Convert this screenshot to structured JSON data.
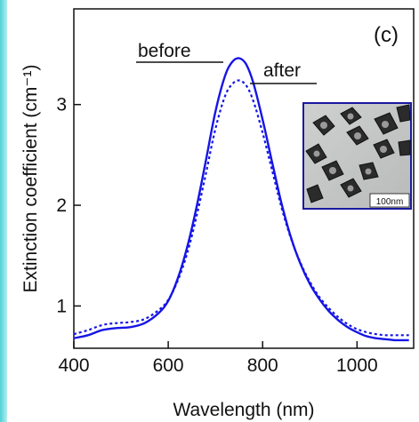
{
  "chart_data": {
    "type": "line",
    "panel_label": "(c)",
    "xlabel": "Wavelength (nm)",
    "ylabel": "Extinction coefficient (cm⁻¹)",
    "xlim": [
      400,
      1120
    ],
    "ylim": [
      0.58,
      3.95
    ],
    "x_ticks": [
      400,
      600,
      800,
      1000
    ],
    "y_ticks": [
      1,
      2,
      3
    ],
    "grid": false,
    "legend": "curve annotations top-center",
    "colors": {
      "line": "#1515e6",
      "axis": "#111111"
    },
    "series": [
      {
        "name": "before",
        "style": "solid",
        "x": [
          400,
          430,
          460,
          490,
          520,
          550,
          580,
          600,
          620,
          640,
          660,
          680,
          700,
          720,
          735,
          750,
          765,
          780,
          800,
          820,
          840,
          860,
          880,
          900,
          920,
          940,
          960,
          980,
          1000,
          1020,
          1040,
          1060,
          1080,
          1100,
          1110
        ],
        "y": [
          0.68,
          0.71,
          0.76,
          0.78,
          0.79,
          0.83,
          0.93,
          1.05,
          1.27,
          1.58,
          1.98,
          2.45,
          2.93,
          3.28,
          3.42,
          3.46,
          3.4,
          3.22,
          2.85,
          2.43,
          2.02,
          1.68,
          1.42,
          1.22,
          1.07,
          0.95,
          0.86,
          0.79,
          0.74,
          0.7,
          0.68,
          0.67,
          0.66,
          0.66,
          0.66
        ]
      },
      {
        "name": "after",
        "style": "dotted",
        "x": [
          400,
          430,
          460,
          490,
          520,
          550,
          580,
          600,
          620,
          640,
          660,
          680,
          700,
          720,
          735,
          750,
          765,
          780,
          800,
          820,
          840,
          860,
          880,
          900,
          920,
          940,
          960,
          980,
          1000,
          1020,
          1040,
          1060,
          1080,
          1100,
          1110
        ],
        "y": [
          0.72,
          0.76,
          0.81,
          0.83,
          0.84,
          0.87,
          0.96,
          1.06,
          1.25,
          1.52,
          1.89,
          2.32,
          2.76,
          3.08,
          3.2,
          3.24,
          3.19,
          3.04,
          2.72,
          2.35,
          1.98,
          1.67,
          1.43,
          1.24,
          1.09,
          0.98,
          0.89,
          0.82,
          0.77,
          0.74,
          0.72,
          0.71,
          0.71,
          0.71,
          0.71
        ]
      }
    ],
    "inset": {
      "scale_bar_label": "100nm"
    }
  }
}
